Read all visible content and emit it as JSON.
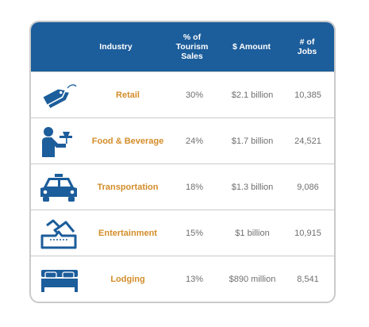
{
  "header": {
    "industry": "Industry",
    "pct_tourism_sales": "% of\nTourism\nSales",
    "amount": "$ Amount",
    "jobs": "# of\nJobs"
  },
  "rows": [
    {
      "industry": "Retail",
      "pct": "30%",
      "amount": "$2.1 billion",
      "jobs": "10,385",
      "icon": "price-tag-icon"
    },
    {
      "industry": "Food & Beverage",
      "pct": "24%",
      "amount": "$1.7 billion",
      "jobs": "24,521",
      "icon": "waiter-icon"
    },
    {
      "industry": "Transportation",
      "pct": "18%",
      "amount": "$1.3 billion",
      "jobs": "9,086",
      "icon": "taxi-icon"
    },
    {
      "industry": "Entertainment",
      "pct": "15%",
      "amount": "$1 billion",
      "jobs": "10,915",
      "icon": "ticket-icon"
    },
    {
      "industry": "Lodging",
      "pct": "13%",
      "amount": "$890 million",
      "jobs": "8,541",
      "icon": "bed-icon"
    }
  ],
  "colors": {
    "header_bg": "#1c5d9b",
    "industry_text": "#d38d2a",
    "icon": "#1c5d9b",
    "border": "#c9cacb"
  }
}
